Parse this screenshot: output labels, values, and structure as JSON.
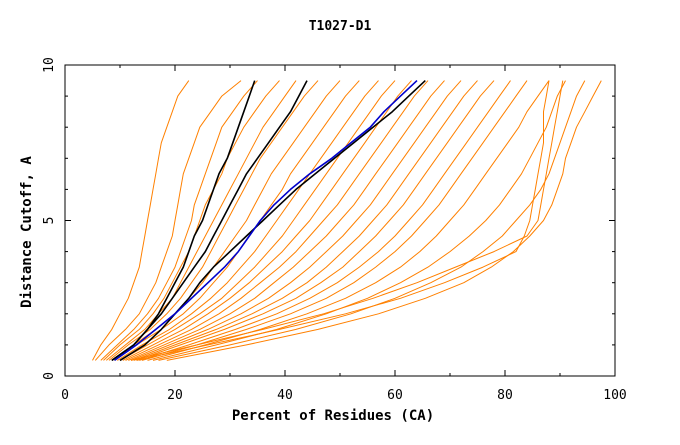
{
  "chart_data": {
    "type": "line",
    "title": "T1027-D1",
    "xlabel": "Percent of Residues (CA)",
    "ylabel": "Distance Cutoff, A",
    "xlim": [
      0,
      100
    ],
    "ylim": [
      0,
      10
    ],
    "x_ticks": [
      "0",
      "20",
      "40",
      "60",
      "80",
      "100"
    ],
    "y_ticks": [
      "0",
      "5",
      "10"
    ],
    "grid": false,
    "legend": "none",
    "colors": {
      "background_series": "#ff8000",
      "highlight_black": "#000000",
      "highlight_blue": "#0000cc"
    },
    "y_cutoffs": [
      0.5,
      1.0,
      1.5,
      2.0,
      2.5,
      3.0,
      3.5,
      4.0,
      4.5,
      5.0,
      5.5,
      6.0,
      6.5,
      7.0,
      7.5,
      8.0,
      8.5,
      9.0,
      9.5
    ],
    "background_series": [
      {
        "x": [
          5.0,
          6.5,
          8.5,
          10.0,
          11.5,
          12.5,
          13.5,
          14.0,
          14.5,
          15.0,
          15.5,
          16.0,
          16.5,
          17.0,
          17.5,
          18.5,
          19.5,
          20.5,
          22.5
        ]
      },
      {
        "x": [
          5.5,
          8.0,
          11.0,
          13.5,
          15.0,
          16.5,
          17.5,
          18.5,
          19.5,
          20.0,
          20.5,
          21.0,
          21.5,
          22.5,
          23.5,
          24.5,
          26.5,
          28.5,
          32.0
        ]
      },
      {
        "x": [
          6.5,
          9.5,
          12.5,
          15.0,
          17.0,
          18.5,
          20.0,
          21.0,
          22.0,
          23.0,
          23.5,
          24.5,
          25.5,
          26.5,
          27.5,
          28.5,
          30.5,
          32.5,
          35.0
        ]
      },
      {
        "x": [
          7.0,
          10.0,
          13.5,
          16.0,
          18.0,
          19.5,
          21.0,
          22.5,
          23.5,
          24.5,
          25.5,
          27.0,
          28.5,
          29.5,
          31.0,
          32.5,
          34.5,
          36.5,
          39.0
        ]
      },
      {
        "x": [
          7.5,
          11.0,
          14.5,
          17.0,
          19.5,
          21.0,
          22.5,
          24.0,
          25.5,
          27.0,
          28.5,
          30.0,
          31.5,
          33.0,
          34.5,
          36.0,
          38.0,
          40.0,
          42.0
        ]
      },
      {
        "x": [
          8.0,
          11.5,
          15.5,
          18.5,
          21.0,
          23.0,
          25.0,
          26.5,
          28.0,
          29.5,
          31.0,
          32.5,
          34.0,
          35.5,
          37.5,
          39.5,
          41.5,
          43.5,
          46.0
        ]
      },
      {
        "x": [
          8.5,
          12.5,
          16.5,
          20.0,
          22.5,
          25.0,
          27.0,
          29.0,
          31.0,
          33.0,
          34.5,
          36.0,
          37.5,
          39.5,
          41.5,
          43.5,
          45.5,
          47.5,
          50.0
        ]
      },
      {
        "x": [
          9.0,
          13.0,
          17.5,
          21.5,
          24.5,
          27.0,
          29.5,
          31.5,
          33.5,
          35.5,
          37.5,
          39.5,
          41.0,
          43.0,
          45.0,
          47.0,
          49.0,
          51.0,
          53.5
        ]
      },
      {
        "x": [
          9.5,
          14.0,
          19.0,
          23.0,
          26.5,
          29.5,
          32.0,
          34.5,
          36.5,
          38.5,
          40.5,
          42.5,
          44.5,
          46.5,
          48.5,
          50.5,
          52.5,
          54.5,
          57.0
        ]
      },
      {
        "x": [
          10.0,
          15.0,
          20.0,
          24.5,
          28.5,
          31.5,
          34.5,
          37.0,
          39.5,
          41.5,
          43.5,
          45.5,
          47.5,
          49.5,
          51.5,
          53.5,
          55.5,
          57.5,
          60.0
        ]
      },
      {
        "x": [
          10.5,
          16.0,
          21.5,
          26.0,
          30.0,
          33.5,
          36.5,
          39.5,
          42.0,
          44.5,
          46.5,
          48.5,
          50.5,
          52.5,
          54.5,
          56.5,
          58.5,
          60.5,
          63.0
        ]
      },
      {
        "x": [
          11.0,
          17.0,
          23.0,
          28.0,
          32.0,
          35.5,
          39.0,
          42.0,
          44.5,
          47.0,
          49.5,
          51.5,
          53.5,
          55.5,
          57.5,
          59.5,
          61.5,
          63.5,
          66.0
        ]
      },
      {
        "x": [
          11.5,
          18.0,
          24.5,
          30.0,
          34.5,
          38.0,
          41.5,
          44.5,
          47.5,
          50.0,
          52.5,
          54.5,
          56.5,
          58.5,
          60.5,
          62.5,
          64.5,
          66.5,
          69.0
        ]
      },
      {
        "x": [
          12.0,
          19.0,
          26.0,
          32.0,
          37.0,
          41.0,
          44.5,
          47.5,
          50.5,
          53.0,
          55.5,
          57.5,
          59.5,
          61.5,
          63.5,
          65.5,
          67.5,
          69.5,
          72.0
        ]
      },
      {
        "x": [
          12.5,
          20.0,
          27.5,
          34.0,
          39.5,
          44.0,
          47.5,
          50.5,
          53.5,
          56.0,
          58.5,
          60.5,
          62.5,
          64.5,
          66.5,
          68.5,
          70.5,
          72.5,
          75.0
        ]
      },
      {
        "x": [
          13.0,
          21.0,
          29.0,
          36.0,
          42.0,
          46.5,
          50.5,
          53.5,
          56.5,
          59.0,
          61.5,
          63.5,
          65.5,
          67.5,
          69.5,
          71.5,
          73.5,
          75.5,
          78.0
        ]
      },
      {
        "x": [
          13.5,
          22.5,
          31.0,
          38.5,
          44.5,
          49.5,
          53.5,
          57.0,
          60.0,
          62.5,
          65.0,
          67.0,
          69.0,
          71.0,
          73.0,
          75.0,
          77.0,
          79.0,
          81.0
        ]
      },
      {
        "x": [
          14.0,
          24.0,
          33.0,
          41.0,
          47.5,
          52.5,
          56.5,
          60.0,
          63.0,
          65.5,
          68.0,
          70.0,
          72.0,
          74.0,
          76.0,
          78.0,
          80.0,
          82.0,
          84.0
        ]
      },
      {
        "x": [
          15.0,
          25.5,
          35.5,
          44.0,
          51.0,
          56.5,
          61.0,
          64.5,
          67.5,
          70.0,
          72.5,
          74.5,
          76.5,
          78.5,
          80.5,
          82.5,
          84.0,
          86.0,
          88.0
        ]
      },
      {
        "x": [
          16.0,
          27.5,
          38.5,
          47.5,
          55.0,
          61.0,
          66.0,
          70.0,
          73.5,
          76.5,
          79.0,
          81.0,
          83.0,
          84.5,
          86.0,
          87.5,
          88.5,
          89.5,
          91.0
        ]
      },
      {
        "x": [
          17.0,
          30.0,
          42.0,
          52.0,
          60.0,
          66.5,
          72.0,
          76.0,
          79.5,
          82.0,
          84.5,
          86.5,
          88.0,
          89.0,
          90.0,
          91.0,
          92.0,
          93.0,
          94.5
        ]
      },
      {
        "x": [
          18.5,
          33.0,
          46.0,
          57.0,
          65.5,
          72.5,
          77.5,
          81.5,
          84.5,
          87.0,
          88.5,
          89.5,
          90.5,
          91.0,
          92.0,
          93.0,
          94.5,
          96.0,
          97.5
        ]
      },
      {
        "x": [
          12.0,
          24.0,
          36.0,
          47.0,
          56.0,
          64.0,
          71.0,
          78.0,
          84.0,
          86.0,
          86.5,
          87.0,
          87.5,
          88.0,
          88.5,
          89.0,
          89.5,
          90.0,
          90.5
        ]
      },
      {
        "x": [
          13.0,
          26.0,
          39.0,
          51.0,
          61.0,
          69.0,
          76.0,
          82.0,
          83.5,
          84.5,
          85.0,
          85.5,
          86.0,
          86.5,
          87.0,
          87.0,
          87.0,
          87.5,
          88.0
        ]
      }
    ],
    "highlight_series": [
      {
        "color": "#000000",
        "x": [
          8.5,
          12.5,
          15.0,
          17.0,
          18.5,
          20.0,
          21.5,
          22.5,
          23.5,
          25.0,
          26.0,
          27.0,
          28.0,
          29.5,
          30.5,
          31.5,
          32.5,
          33.5,
          34.5
        ]
      },
      {
        "color": "#000000",
        "x": [
          8.5,
          12.5,
          15.0,
          17.5,
          19.5,
          21.5,
          23.5,
          25.5,
          27.0,
          28.5,
          30.0,
          31.5,
          33.0,
          35.0,
          37.0,
          39.0,
          41.0,
          42.5,
          44.0
        ]
      },
      {
        "color": "#000000",
        "x": [
          10.0,
          14.5,
          17.5,
          20.0,
          22.5,
          24.5,
          27.0,
          30.0,
          33.0,
          36.0,
          39.0,
          42.0,
          45.5,
          49.0,
          52.5,
          56.0,
          59.5,
          62.5,
          65.5
        ]
      },
      {
        "color": "#0000cc",
        "x": [
          9.0,
          13.0,
          16.5,
          20.0,
          23.0,
          26.0,
          29.0,
          31.5,
          33.5,
          35.5,
          38.0,
          41.0,
          44.5,
          48.5,
          52.0,
          55.5,
          58.0,
          61.0,
          64.0
        ]
      }
    ]
  }
}
